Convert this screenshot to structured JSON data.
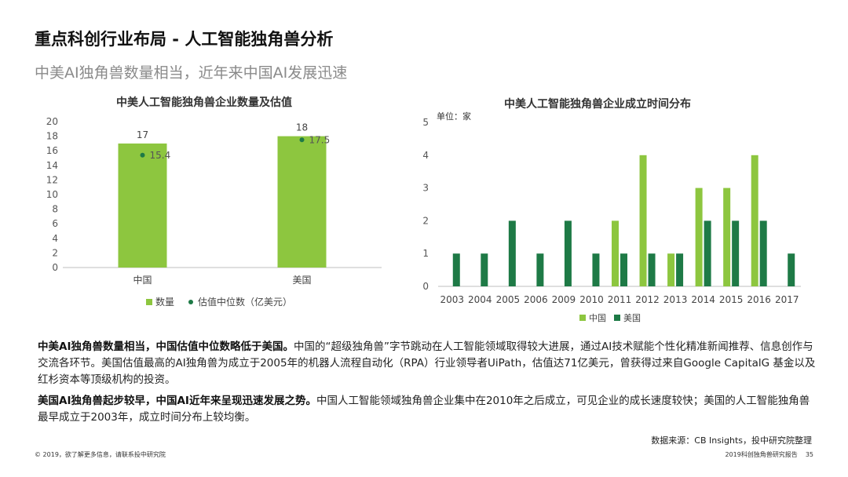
{
  "header": {
    "title": "重点科创行业布局 - 人工智能独角兽分析",
    "subtitle": "中美AI独角兽数量相当，近年来中国AI发展迅速"
  },
  "colors": {
    "light_green": "#8dc63f",
    "dark_green": "#1e7a46",
    "dot": "#1e7a46"
  },
  "chart_data": [
    {
      "type": "bar",
      "title": "中美人工智能独角兽企业数量及估值",
      "categories": [
        "中国",
        "美国"
      ],
      "series": [
        {
          "name": "数量",
          "values": [
            17,
            18
          ],
          "labels": [
            "17",
            "18"
          ]
        },
        {
          "name": "估值中位数（亿美元）",
          "values": [
            15.4,
            17.5
          ],
          "labels": [
            "15.4",
            "17.5"
          ],
          "kind": "scatter"
        }
      ],
      "ylim": [
        0,
        20
      ],
      "yticks": [
        "0",
        "2",
        "4",
        "6",
        "8",
        "10",
        "12",
        "14",
        "16",
        "18",
        "20"
      ],
      "legend": "bottom",
      "grid": false
    },
    {
      "type": "bar",
      "title": "中美人工智能独角兽企业成立时间分布",
      "unit_label": "单位：家",
      "categories": [
        "2003",
        "2004",
        "2005",
        "2006",
        "2009",
        "2010",
        "2011",
        "2012",
        "2013",
        "2014",
        "2015",
        "2016",
        "2017"
      ],
      "series": [
        {
          "name": "中国",
          "values": [
            0,
            0,
            0,
            0,
            0,
            0,
            2,
            4,
            1,
            3,
            3,
            4,
            0
          ]
        },
        {
          "name": "美国",
          "values": [
            1,
            1,
            2,
            1,
            2,
            1,
            1,
            1,
            1,
            2,
            2,
            2,
            1
          ]
        }
      ],
      "ylim": [
        0,
        5
      ],
      "yticks": [
        "0",
        "1",
        "2",
        "3",
        "4",
        "5"
      ],
      "legend": "bottom",
      "grid": false
    }
  ],
  "paragraphs": [
    {
      "bold": "中美AI独角兽数量相当，中国估值中位数略低于美国。",
      "text": "中国的“超级独角兽”字节跳动在人工智能领域取得较大进展，通过AI技术赋能个性化精准新闻推荐、信息创作与交流各环节。美国估值最高的AI独角兽为成立于2005年的机器人流程自动化（RPA）行业领导者UiPath，估值达71亿美元，曾获得过来自Google CapitalG 基金以及红杉资本等顶级机构的投资。"
    },
    {
      "bold": "美国AI独角兽起步较早，中国AI近年来呈现迅速发展之势。",
      "text": "中国人工智能领域独角兽企业集中在2010年之后成立，可见企业的成长速度较快；美国的人工智能独角兽最早成立于2003年，成立时间分布上较均衡。"
    }
  ],
  "source": "数据来源：CB Insights，投中研究院整理",
  "footer": {
    "left": "© 2019，欲了解更多信息，请联系投中研究院",
    "report": "2019科创独角兽研究报告",
    "page": "35"
  }
}
